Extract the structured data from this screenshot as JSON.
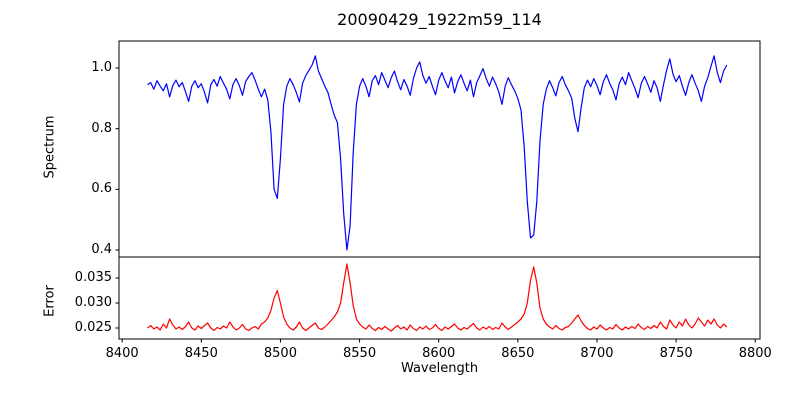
{
  "figure": {
    "background": "#ffffff",
    "frame_color": "#000000"
  },
  "chart_data": {
    "type": "line",
    "title": "20090429_1922m59_114",
    "xlabel": "Wavelength",
    "grid": false,
    "legend": null,
    "xlim": [
      8398,
      8803
    ],
    "xticks": [
      8400,
      8450,
      8500,
      8550,
      8600,
      8650,
      8700,
      8750,
      8800
    ],
    "xtick_labels": [
      "8400",
      "8450",
      "8500",
      "8550",
      "8600",
      "8650",
      "8700",
      "8750",
      "8800"
    ],
    "x_start": 8416,
    "x_step": 2,
    "subplots": [
      {
        "name": "spectrum",
        "ylabel": "Spectrum",
        "color": "#0000ff",
        "ylim": [
          0.377,
          1.089
        ],
        "yticks": [
          0.4,
          0.6,
          0.8,
          1.0
        ],
        "ytick_labels": [
          "0.4",
          "0.6",
          "0.8",
          "1.0"
        ],
        "absorption_line_centers": [
          8498,
          8542,
          8660,
          8688
        ],
        "values": [
          0.945,
          0.952,
          0.93,
          0.958,
          0.94,
          0.925,
          0.948,
          0.905,
          0.942,
          0.96,
          0.938,
          0.952,
          0.922,
          0.89,
          0.94,
          0.958,
          0.935,
          0.948,
          0.92,
          0.885,
          0.945,
          0.962,
          0.94,
          0.972,
          0.95,
          0.93,
          0.898,
          0.946,
          0.965,
          0.942,
          0.91,
          0.955,
          0.972,
          0.985,
          0.96,
          0.93,
          0.905,
          0.93,
          0.895,
          0.79,
          0.6,
          0.57,
          0.7,
          0.88,
          0.94,
          0.965,
          0.945,
          0.92,
          0.888,
          0.95,
          0.975,
          0.992,
          1.01,
          1.04,
          0.99,
          0.965,
          0.94,
          0.92,
          0.88,
          0.845,
          0.82,
          0.7,
          0.52,
          0.4,
          0.48,
          0.72,
          0.88,
          0.94,
          0.965,
          0.94,
          0.905,
          0.958,
          0.975,
          0.945,
          0.985,
          0.96,
          0.935,
          0.968,
          0.99,
          0.955,
          0.928,
          0.962,
          0.94,
          0.91,
          0.965,
          1.0,
          1.02,
          0.975,
          0.95,
          0.972,
          0.94,
          0.912,
          0.96,
          0.985,
          0.958,
          0.935,
          0.97,
          0.918,
          0.955,
          0.978,
          0.95,
          0.925,
          0.96,
          0.905,
          0.952,
          0.975,
          0.998,
          0.965,
          0.94,
          0.97,
          0.948,
          0.92,
          0.88,
          0.94,
          0.968,
          0.945,
          0.925,
          0.9,
          0.862,
          0.74,
          0.56,
          0.44,
          0.45,
          0.56,
          0.76,
          0.88,
          0.93,
          0.958,
          0.935,
          0.908,
          0.952,
          0.972,
          0.945,
          0.925,
          0.9,
          0.835,
          0.79,
          0.87,
          0.935,
          0.96,
          0.938,
          0.965,
          0.942,
          0.912,
          0.955,
          0.978,
          0.95,
          0.928,
          0.895,
          0.948,
          0.97,
          0.945,
          0.985,
          0.958,
          0.932,
          0.902,
          0.95,
          0.972,
          0.948,
          0.92,
          0.958,
          0.935,
          0.89,
          0.945,
          0.992,
          1.03,
          0.98,
          0.955,
          0.975,
          0.94,
          0.91,
          0.952,
          0.978,
          0.95,
          0.925,
          0.89,
          0.94,
          0.968,
          1.005,
          1.04,
          0.985,
          0.952,
          0.99,
          1.01
        ]
      },
      {
        "name": "error",
        "ylabel": "Error",
        "color": "#ff0000",
        "ylim": [
          0.0228,
          0.0392
        ],
        "yticks": [
          0.025,
          0.03,
          0.035
        ],
        "ytick_labels": [
          "0.025",
          "0.030",
          "0.035"
        ],
        "peak_centers": [
          8498,
          8542,
          8660,
          8688
        ],
        "values": [
          0.025,
          0.0255,
          0.0248,
          0.0252,
          0.0246,
          0.0258,
          0.025,
          0.0268,
          0.0256,
          0.0248,
          0.0252,
          0.0247,
          0.0253,
          0.0262,
          0.025,
          0.0246,
          0.0254,
          0.0249,
          0.0255,
          0.026,
          0.025,
          0.0245,
          0.0251,
          0.0248,
          0.0254,
          0.025,
          0.0262,
          0.0252,
          0.0246,
          0.025,
          0.0257,
          0.0248,
          0.0245,
          0.025,
          0.0253,
          0.0248,
          0.0258,
          0.0262,
          0.027,
          0.0285,
          0.031,
          0.0325,
          0.03,
          0.0272,
          0.0258,
          0.025,
          0.0246,
          0.0252,
          0.0262,
          0.025,
          0.0245,
          0.025,
          0.0255,
          0.026,
          0.025,
          0.0247,
          0.0252,
          0.0258,
          0.0265,
          0.0272,
          0.0282,
          0.03,
          0.034,
          0.0378,
          0.034,
          0.0295,
          0.0268,
          0.0258,
          0.0252,
          0.0248,
          0.0256,
          0.0249,
          0.0245,
          0.0251,
          0.0247,
          0.0253,
          0.0248,
          0.0244,
          0.025,
          0.0255,
          0.0248,
          0.0252,
          0.0246,
          0.0256,
          0.0249,
          0.0245,
          0.0252,
          0.0248,
          0.0254,
          0.0247,
          0.025,
          0.0257,
          0.0249,
          0.0245,
          0.0252,
          0.0248,
          0.0253,
          0.0258,
          0.025,
          0.0246,
          0.0251,
          0.0248,
          0.0254,
          0.0259,
          0.025,
          0.0246,
          0.0252,
          0.0248,
          0.0253,
          0.0247,
          0.0251,
          0.0248,
          0.026,
          0.0252,
          0.0247,
          0.0252,
          0.0257,
          0.0262,
          0.0268,
          0.0278,
          0.03,
          0.0345,
          0.0372,
          0.034,
          0.029,
          0.0268,
          0.0258,
          0.0252,
          0.0248,
          0.0255,
          0.0249,
          0.0246,
          0.0251,
          0.0253,
          0.026,
          0.0268,
          0.0276,
          0.0264,
          0.0255,
          0.0249,
          0.0246,
          0.0252,
          0.0248,
          0.0256,
          0.025,
          0.0246,
          0.0251,
          0.0248,
          0.0257,
          0.025,
          0.0246,
          0.0252,
          0.0248,
          0.0253,
          0.0249,
          0.0258,
          0.0251,
          0.0247,
          0.0253,
          0.0249,
          0.0255,
          0.025,
          0.0262,
          0.0253,
          0.0248,
          0.0266,
          0.0256,
          0.025,
          0.0262,
          0.0254,
          0.0268,
          0.0256,
          0.025,
          0.0258,
          0.027,
          0.0262,
          0.0254,
          0.0266,
          0.0258,
          0.0268,
          0.0256,
          0.025,
          0.0258,
          0.0252
        ]
      }
    ]
  }
}
